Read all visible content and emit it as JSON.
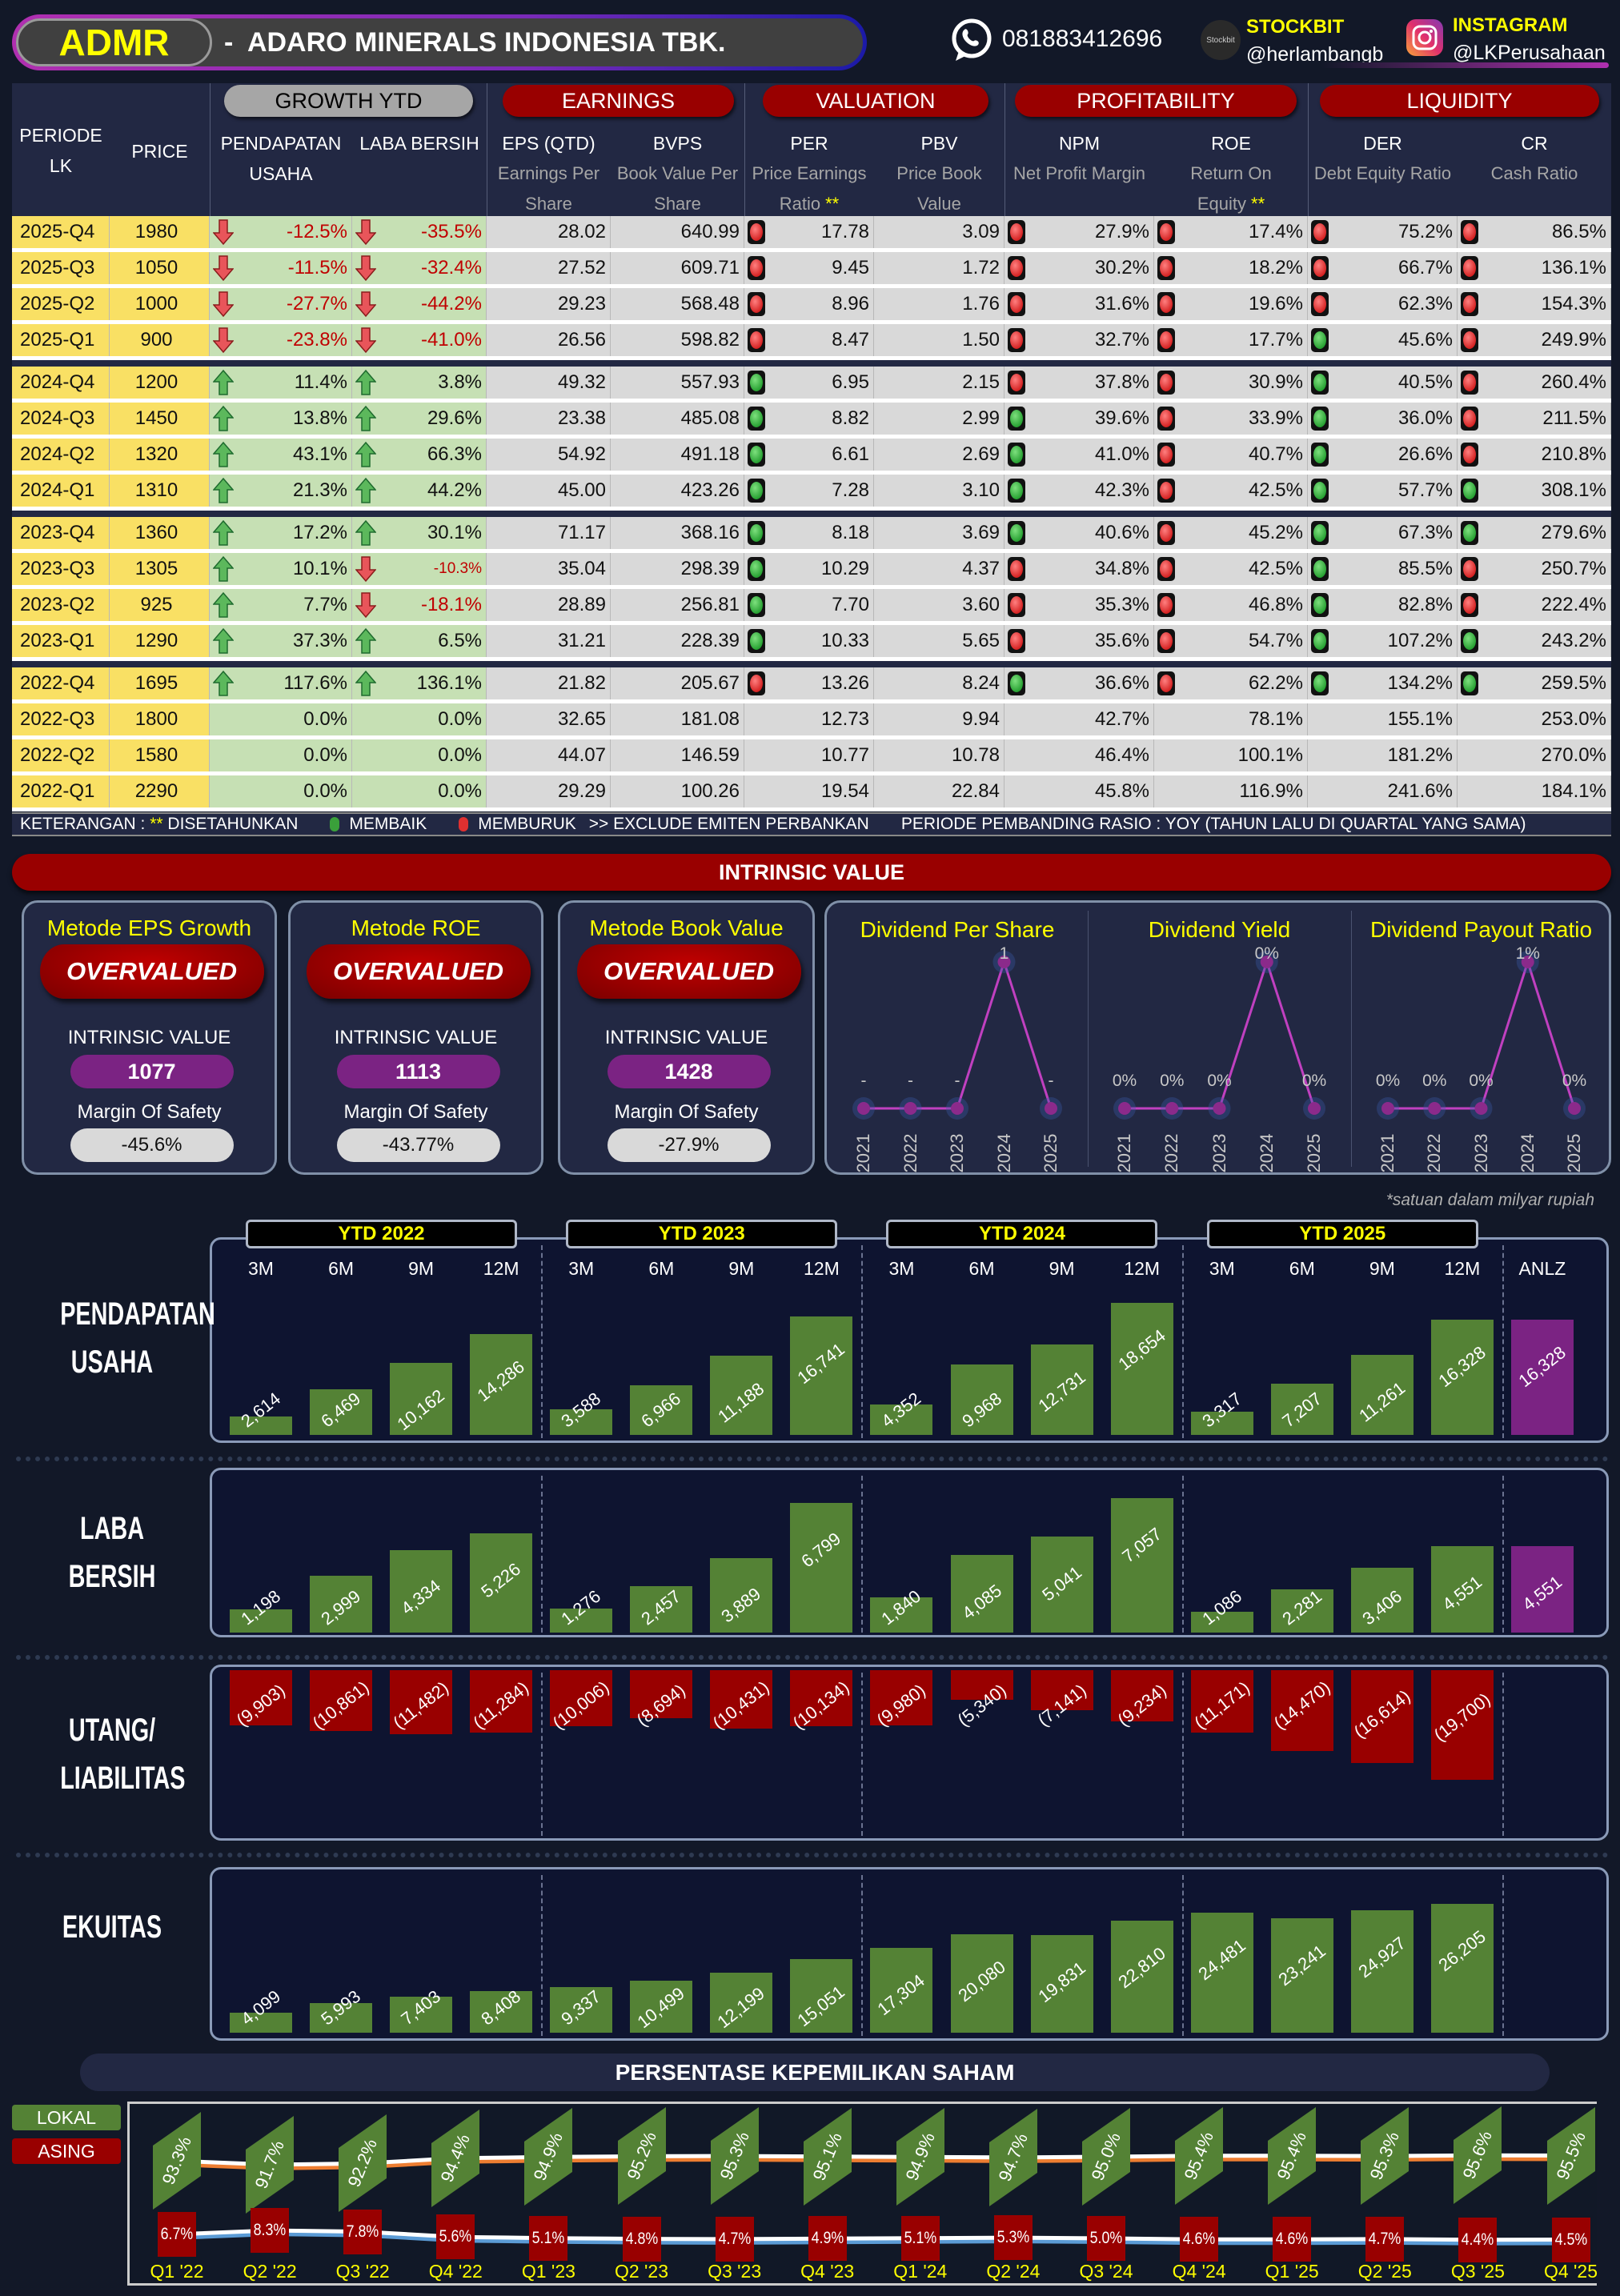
{
  "header": {
    "ticker": "ADMR",
    "company": "-  ADARO MINERALS INDONESIA TBK.",
    "phone": "081883412696",
    "stockbit_logo": "Stockbit",
    "stockbit_label": "STOCKBIT",
    "stockbit_handle": "@herlambangb",
    "instagram_label": "INSTAGRAM",
    "instagram_handle": "@LKPerusahaan"
  },
  "table": {
    "groups": [
      "GROWTH YTD",
      "EARNINGS",
      "VALUATION",
      "PROFITABILITY",
      "LIQUIDITY"
    ],
    "columns": [
      {
        "title": "PERIODE LK",
        "sub": ""
      },
      {
        "title": "PRICE",
        "sub": ""
      },
      {
        "title": "PENDAPATAN USAHA",
        "sub": ""
      },
      {
        "title": "LABA BERSIH",
        "sub": ""
      },
      {
        "title": "EPS (QTD)",
        "sub": "Earnings Per Share"
      },
      {
        "title": "BVPS",
        "sub": "Book Value Per Share"
      },
      {
        "title": "PER",
        "sub": "Price Earnings Ratio",
        "star": "**"
      },
      {
        "title": "PBV",
        "sub": "Price Book Value"
      },
      {
        "title": "NPM",
        "sub": "Net Profit Margin"
      },
      {
        "title": "ROE",
        "sub": "Return On Equity",
        "star": "**"
      },
      {
        "title": "DER",
        "sub": "Debt Equity Ratio"
      },
      {
        "title": "CR",
        "sub": "Cash Ratio"
      }
    ],
    "rows": [
      {
        "p": "2025-Q4",
        "price": "1980",
        "rev": "-12.5%",
        "rev_a": "down",
        "np": "-35.5%",
        "np_a": "down",
        "eps": "28.02",
        "bvps": "640.99",
        "per": "17.78",
        "per_i": "r",
        "pbv": "3.09",
        "npm": "27.9%",
        "npm_i": "r",
        "roe": "17.4%",
        "roe_i": "r",
        "der": "75.2%",
        "der_i": "r",
        "cr": "86.5%",
        "cr_i": "r"
      },
      {
        "p": "2025-Q3",
        "price": "1050",
        "rev": "-11.5%",
        "rev_a": "down",
        "np": "-32.4%",
        "np_a": "down",
        "eps": "27.52",
        "bvps": "609.71",
        "per": "9.45",
        "per_i": "r",
        "pbv": "1.72",
        "npm": "30.2%",
        "npm_i": "r",
        "roe": "18.2%",
        "roe_i": "r",
        "der": "66.7%",
        "der_i": "r",
        "cr": "136.1%",
        "cr_i": "r"
      },
      {
        "p": "2025-Q2",
        "price": "1000",
        "rev": "-27.7%",
        "rev_a": "down",
        "np": "-44.2%",
        "np_a": "down",
        "eps": "29.23",
        "bvps": "568.48",
        "per": "8.96",
        "per_i": "r",
        "pbv": "1.76",
        "npm": "31.6%",
        "npm_i": "r",
        "roe": "19.6%",
        "roe_i": "r",
        "der": "62.3%",
        "der_i": "r",
        "cr": "154.3%",
        "cr_i": "r"
      },
      {
        "p": "2025-Q1",
        "price": "900",
        "rev": "-23.8%",
        "rev_a": "down",
        "np": "-41.0%",
        "np_a": "down",
        "eps": "26.56",
        "bvps": "598.82",
        "per": "8.47",
        "per_i": "r",
        "pbv": "1.50",
        "npm": "32.7%",
        "npm_i": "r",
        "roe": "17.7%",
        "roe_i": "r",
        "der": "45.6%",
        "der_i": "g",
        "cr": "249.9%",
        "cr_i": "r"
      },
      {
        "p": "2024-Q4",
        "price": "1200",
        "rev": "11.4%",
        "rev_a": "up",
        "np": "3.8%",
        "np_a": "up",
        "eps": "49.32",
        "bvps": "557.93",
        "per": "6.95",
        "per_i": "g",
        "pbv": "2.15",
        "npm": "37.8%",
        "npm_i": "r",
        "roe": "30.9%",
        "roe_i": "r",
        "der": "40.5%",
        "der_i": "g",
        "cr": "260.4%",
        "cr_i": "r"
      },
      {
        "p": "2024-Q3",
        "price": "1450",
        "rev": "13.8%",
        "rev_a": "up",
        "np": "29.6%",
        "np_a": "up",
        "eps": "23.38",
        "bvps": "485.08",
        "per": "8.82",
        "per_i": "g",
        "pbv": "2.99",
        "npm": "39.6%",
        "npm_i": "g",
        "roe": "33.9%",
        "roe_i": "r",
        "der": "36.0%",
        "der_i": "g",
        "cr": "211.5%",
        "cr_i": "r"
      },
      {
        "p": "2024-Q2",
        "price": "1320",
        "rev": "43.1%",
        "rev_a": "up",
        "np": "66.3%",
        "np_a": "up",
        "eps": "54.92",
        "bvps": "491.18",
        "per": "6.61",
        "per_i": "g",
        "pbv": "2.69",
        "npm": "41.0%",
        "npm_i": "g",
        "roe": "40.7%",
        "roe_i": "r",
        "der": "26.6%",
        "der_i": "g",
        "cr": "210.8%",
        "cr_i": "r"
      },
      {
        "p": "2024-Q1",
        "price": "1310",
        "rev": "21.3%",
        "rev_a": "up",
        "np": "44.2%",
        "np_a": "up",
        "eps": "45.00",
        "bvps": "423.26",
        "per": "7.28",
        "per_i": "g",
        "pbv": "3.10",
        "npm": "42.3%",
        "npm_i": "g",
        "roe": "42.5%",
        "roe_i": "r",
        "der": "57.7%",
        "der_i": "g",
        "cr": "308.1%",
        "cr_i": "g"
      },
      {
        "p": "2023-Q4",
        "price": "1360",
        "rev": "17.2%",
        "rev_a": "up",
        "np": "30.1%",
        "np_a": "up",
        "eps": "71.17",
        "bvps": "368.16",
        "per": "8.18",
        "per_i": "g",
        "pbv": "3.69",
        "npm": "40.6%",
        "npm_i": "g",
        "roe": "45.2%",
        "roe_i": "r",
        "der": "67.3%",
        "der_i": "g",
        "cr": "279.6%",
        "cr_i": "g"
      },
      {
        "p": "2023-Q3",
        "price": "1305",
        "rev": "10.1%",
        "rev_a": "up",
        "np": "-10.3%",
        "np_a": "down",
        "eps": "35.04",
        "bvps": "298.39",
        "per": "10.29",
        "per_i": "g",
        "pbv": "4.37",
        "npm": "34.8%",
        "npm_i": "r",
        "roe": "42.5%",
        "roe_i": "r",
        "der": "85.5%",
        "der_i": "g",
        "cr": "250.7%",
        "cr_i": "r"
      },
      {
        "p": "2023-Q2",
        "price": "925",
        "rev": "7.7%",
        "rev_a": "up",
        "np": "-18.1%",
        "np_a": "down",
        "eps": "28.89",
        "bvps": "256.81",
        "per": "7.70",
        "per_i": "g",
        "pbv": "3.60",
        "npm": "35.3%",
        "npm_i": "r",
        "roe": "46.8%",
        "roe_i": "r",
        "der": "82.8%",
        "der_i": "g",
        "cr": "222.4%",
        "cr_i": "r"
      },
      {
        "p": "2023-Q1",
        "price": "1290",
        "rev": "37.3%",
        "rev_a": "up",
        "np": "6.5%",
        "np_a": "up",
        "eps": "31.21",
        "bvps": "228.39",
        "per": "10.33",
        "per_i": "g",
        "pbv": "5.65",
        "npm": "35.6%",
        "npm_i": "r",
        "roe": "54.7%",
        "roe_i": "r",
        "der": "107.2%",
        "der_i": "g",
        "cr": "243.2%",
        "cr_i": "g"
      },
      {
        "p": "2022-Q4",
        "price": "1695",
        "rev": "117.6%",
        "rev_a": "up",
        "np": "136.1%",
        "np_a": "up",
        "eps": "21.82",
        "bvps": "205.67",
        "per": "13.26",
        "per_i": "r",
        "pbv": "8.24",
        "npm": "36.6%",
        "npm_i": "g",
        "roe": "62.2%",
        "roe_i": "r",
        "der": "134.2%",
        "der_i": "g",
        "cr": "259.5%",
        "cr_i": "g"
      },
      {
        "p": "2022-Q3",
        "price": "1800",
        "rev": "0.0%",
        "rev_a": "",
        "np": "0.0%",
        "np_a": "",
        "eps": "32.65",
        "bvps": "181.08",
        "per": "12.73",
        "per_i": "",
        "pbv": "9.94",
        "npm": "42.7%",
        "npm_i": "",
        "roe": "78.1%",
        "roe_i": "",
        "der": "155.1%",
        "der_i": "",
        "cr": "253.0%",
        "cr_i": ""
      },
      {
        "p": "2022-Q2",
        "price": "1580",
        "rev": "0.0%",
        "rev_a": "",
        "np": "0.0%",
        "np_a": "",
        "eps": "44.07",
        "bvps": "146.59",
        "per": "10.77",
        "per_i": "",
        "pbv": "10.78",
        "npm": "46.4%",
        "npm_i": "",
        "roe": "100.1%",
        "roe_i": "",
        "der": "181.2%",
        "der_i": "",
        "cr": "270.0%",
        "cr_i": ""
      },
      {
        "p": "2022-Q1",
        "price": "2290",
        "rev": "0.0%",
        "rev_a": "",
        "np": "0.0%",
        "np_a": "",
        "eps": "29.29",
        "bvps": "100.26",
        "per": "19.54",
        "per_i": "",
        "pbv": "22.84",
        "npm": "45.8%",
        "npm_i": "",
        "roe": "116.9%",
        "roe_i": "",
        "der": "241.6%",
        "der_i": "",
        "cr": "184.1%",
        "cr_i": ""
      }
    ]
  },
  "legend": {
    "label": "KETERANGAN : ",
    "stars": "**",
    "annualized": " DISETAHUNKAN",
    "improving": "MEMBAIK",
    "worsening": "MEMBURUK",
    "exclude": ">> EXCLUDE EMITEN PERBANKAN",
    "period": "PERIODE PEMBANDING RASIO : YOY (TAHUN LALU DI QUARTAL YANG SAMA)"
  },
  "intrinsic": {
    "title": "INTRINSIC VALUE",
    "cards": [
      {
        "title": "Metode EPS Growth",
        "status": "OVERVALUED",
        "iv_label": "INTRINSIC VALUE",
        "iv": "1077",
        "mos_label": "Margin Of Safety",
        "mos": "-45.6%"
      },
      {
        "title": "Metode ROE",
        "status": "OVERVALUED",
        "iv_label": "INTRINSIC VALUE",
        "iv": "1113",
        "mos_label": "Margin Of Safety",
        "mos": "-43.77%"
      },
      {
        "title": "Metode Book Value",
        "status": "OVERVALUED",
        "iv_label": "INTRINSIC VALUE",
        "iv": "1428",
        "mos_label": "Margin Of Safety",
        "mos": "-27.9%"
      }
    ],
    "dividend": {
      "years": [
        "2021",
        "2022",
        "2023",
        "2024",
        "2025"
      ],
      "charts": [
        {
          "title": "Dividend Per Share",
          "values": [
            0,
            0,
            0,
            1,
            0
          ],
          "labels": [
            "-",
            "-",
            "-",
            "1",
            "-"
          ]
        },
        {
          "title": "Dividend Yield",
          "values": [
            0,
            0,
            0,
            1,
            0
          ],
          "labels": [
            "0%",
            "0%",
            "0%",
            "0%",
            "0%"
          ]
        },
        {
          "title": "Dividend Payout Ratio",
          "values": [
            0,
            0,
            0,
            1,
            0
          ],
          "labels": [
            "0%",
            "0%",
            "0%",
            "1%",
            "0%"
          ]
        }
      ]
    }
  },
  "chart_data": {
    "type": "bar",
    "note": "*satuan dalam milyar rupiah",
    "groups": [
      "YTD 2022",
      "YTD 2023",
      "YTD 2024",
      "YTD 2025"
    ],
    "categories": [
      "3M",
      "6M",
      "9M",
      "12M",
      "3M",
      "6M",
      "9M",
      "12M",
      "3M",
      "6M",
      "9M",
      "12M",
      "3M",
      "6M",
      "9M",
      "12M",
      "ANLZ"
    ],
    "series": [
      {
        "name": "PENDAPATAN USAHA",
        "values": [
          2614,
          6469,
          10162,
          14286,
          3588,
          6966,
          11188,
          16741,
          4352,
          9968,
          12731,
          18654,
          3317,
          7207,
          11261,
          16328,
          16328
        ]
      },
      {
        "name": "LABA BERSIH",
        "values": [
          1198,
          2999,
          4334,
          5226,
          1276,
          2457,
          3889,
          6799,
          1840,
          4085,
          5041,
          7057,
          1086,
          2281,
          3406,
          4551,
          4551
        ]
      },
      {
        "name": "UTANG/ LIABILITAS",
        "values": [
          -9903,
          -10861,
          -11482,
          -11284,
          -10006,
          -8694,
          -10431,
          -10134,
          -9980,
          -5340,
          -7141,
          -9234,
          -11171,
          -14470,
          -16614,
          -19700,
          null
        ]
      },
      {
        "name": "EKUITAS",
        "values": [
          4099,
          5993,
          7403,
          8408,
          9337,
          10499,
          12199,
          15051,
          17304,
          20080,
          19831,
          22810,
          24481,
          23241,
          24927,
          26205,
          null
        ]
      }
    ],
    "colors": {
      "positive": "#548235",
      "negative": "#990000",
      "annualized": "#7b2383"
    }
  },
  "ownership": {
    "title": "PERSENTASE KEPEMILIKAN SAHAM",
    "legend": [
      "LOKAL",
      "ASING"
    ],
    "quarters": [
      "Q1 '22",
      "Q2 '22",
      "Q3 '22",
      "Q4 '22",
      "Q1 '23",
      "Q2 '23",
      "Q3 '23",
      "Q4 '23",
      "Q1 '24",
      "Q2 '24",
      "Q3 '24",
      "Q4 '24",
      "Q1 '25",
      "Q2 '25",
      "Q3 '25",
      "Q4 '25"
    ],
    "lokal": [
      93.3,
      91.7,
      92.2,
      94.4,
      94.9,
      95.2,
      95.3,
      95.1,
      94.9,
      94.7,
      95.0,
      95.4,
      95.4,
      95.3,
      95.6,
      95.5
    ],
    "asing": [
      6.7,
      8.3,
      7.8,
      5.6,
      5.1,
      4.8,
      4.7,
      4.9,
      5.1,
      5.3,
      5.0,
      4.6,
      4.6,
      4.7,
      4.4,
      4.5
    ]
  }
}
